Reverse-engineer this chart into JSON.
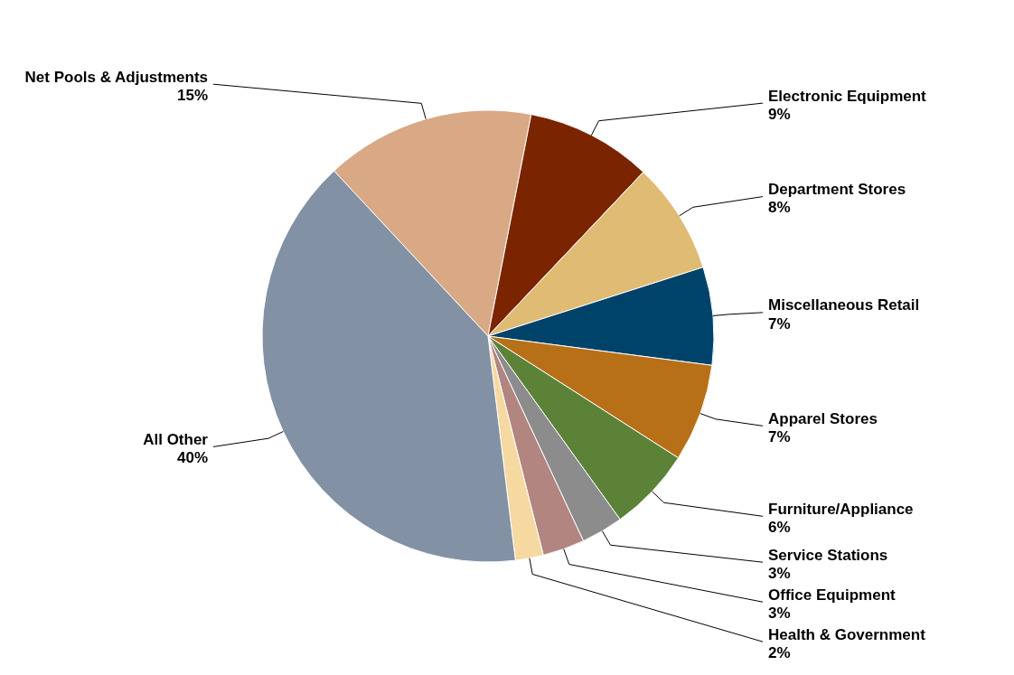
{
  "chart_data": {
    "type": "pie",
    "categories": [
      "Net Pools & Adjustments",
      "Electronic Equipment",
      "Department Stores",
      "Miscellaneous Retail",
      "Apparel Stores",
      "Furniture/Appliance",
      "Service Stations",
      "Office Equipment",
      "Health & Government",
      "All Other"
    ],
    "values": [
      15,
      9,
      8,
      7,
      7,
      6,
      3,
      3,
      2,
      40
    ],
    "colors": [
      "#d9a884",
      "#7a2400",
      "#e0bb73",
      "#00436a",
      "#b87018",
      "#5c8238",
      "#8c8c8c",
      "#b28580",
      "#f5d9a0",
      "#8291a3"
    ],
    "value_labels": [
      "15%",
      "9%",
      "8%",
      "7%",
      "7%",
      "6%",
      "3%",
      "3%",
      "2%",
      "40%"
    ]
  }
}
